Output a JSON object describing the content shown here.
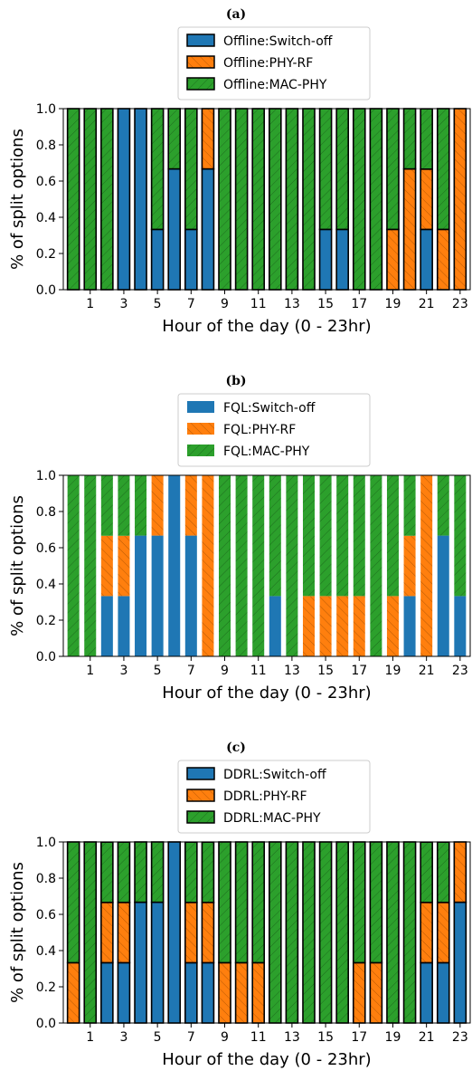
{
  "colors": {
    "switch_off": "#1f77b4",
    "phy_rf": "#ff7f0e",
    "mac_phy": "#2ca02c"
  },
  "chart_data": [
    {
      "type": "bar",
      "stacked": true,
      "title": "(a)",
      "xlabel": "Hour of the day (0 - 23hr)",
      "ylabel": "% of split options",
      "ylim": [
        0,
        1.0
      ],
      "yticks": [
        "0.0",
        "0.2",
        "0.4",
        "0.6",
        "0.8",
        "1.0"
      ],
      "xticks": [
        "1",
        "3",
        "5",
        "7",
        "9",
        "11",
        "13",
        "15",
        "17",
        "19",
        "21",
        "23"
      ],
      "categories": [
        0,
        1,
        2,
        3,
        4,
        5,
        6,
        7,
        8,
        9,
        10,
        11,
        12,
        13,
        14,
        15,
        16,
        17,
        18,
        19,
        20,
        21,
        22,
        23
      ],
      "bar_edges": true,
      "legend_position": "top-center",
      "series": [
        {
          "name": "Offline:Switch-off",
          "color_key": "switch_off",
          "values": [
            0,
            0,
            0,
            1,
            1,
            0.333,
            0.667,
            0.333,
            0.667,
            0,
            0,
            0,
            0,
            0,
            0,
            0.333,
            0.333,
            0,
            0,
            0,
            0,
            0.333,
            0,
            0
          ]
        },
        {
          "name": "Offline:PHY-RF",
          "color_key": "phy_rf",
          "values": [
            0,
            0,
            0,
            0,
            0,
            0,
            0,
            0,
            0.333,
            0,
            0,
            0,
            0,
            0,
            0,
            0,
            0,
            0,
            0,
            0.333,
            0.667,
            0.333,
            0.333,
            1
          ]
        },
        {
          "name": "Offline:MAC-PHY",
          "color_key": "mac_phy",
          "values": [
            1,
            1,
            1,
            0,
            0,
            0.667,
            0.333,
            0.667,
            0,
            1,
            1,
            1,
            1,
            1,
            1,
            0.667,
            0.667,
            1,
            1,
            0.667,
            0.333,
            0.333,
            0.667,
            0
          ]
        }
      ]
    },
    {
      "type": "bar",
      "stacked": true,
      "title": "(b)",
      "xlabel": "Hour of the day (0 - 23hr)",
      "ylabel": "% of split options",
      "ylim": [
        0,
        1.0
      ],
      "yticks": [
        "0.0",
        "0.2",
        "0.4",
        "0.6",
        "0.8",
        "1.0"
      ],
      "xticks": [
        "1",
        "3",
        "5",
        "7",
        "9",
        "11",
        "13",
        "15",
        "17",
        "19",
        "21",
        "23"
      ],
      "categories": [
        0,
        1,
        2,
        3,
        4,
        5,
        6,
        7,
        8,
        9,
        10,
        11,
        12,
        13,
        14,
        15,
        16,
        17,
        18,
        19,
        20,
        21,
        22,
        23
      ],
      "bar_edges": false,
      "legend_position": "top-center",
      "series": [
        {
          "name": "FQL:Switch-off",
          "color_key": "switch_off",
          "values": [
            0,
            0,
            0.333,
            0.333,
            0.667,
            0.667,
            1,
            0.667,
            0,
            0,
            0,
            0,
            0.333,
            0,
            0,
            0,
            0,
            0,
            0,
            0,
            0.333,
            0,
            0.667,
            0.333
          ]
        },
        {
          "name": "FQL:PHY-RF",
          "color_key": "phy_rf",
          "values": [
            0,
            0,
            0.333,
            0.333,
            0,
            0.333,
            0,
            0.333,
            1,
            0,
            0,
            0,
            0,
            0,
            0.333,
            0.333,
            0.333,
            0.333,
            0,
            0.333,
            0.333,
            1,
            0,
            0
          ]
        },
        {
          "name": "FQL:MAC-PHY",
          "color_key": "mac_phy",
          "values": [
            1,
            1,
            0.333,
            0.333,
            0.333,
            0,
            0,
            0,
            0,
            1,
            1,
            1,
            0.667,
            1,
            0.667,
            0.667,
            0.667,
            0.667,
            1,
            0.667,
            0.333,
            0,
            0.333,
            0.667
          ]
        }
      ]
    },
    {
      "type": "bar",
      "stacked": true,
      "title": "(c)",
      "xlabel": "Hour of the day (0 - 23hr)",
      "ylabel": "% of split options",
      "ylim": [
        0,
        1.0
      ],
      "yticks": [
        "0.0",
        "0.2",
        "0.4",
        "0.6",
        "0.8",
        "1.0"
      ],
      "xticks": [
        "1",
        "3",
        "5",
        "7",
        "9",
        "11",
        "13",
        "15",
        "17",
        "19",
        "21",
        "23"
      ],
      "categories": [
        0,
        1,
        2,
        3,
        4,
        5,
        6,
        7,
        8,
        9,
        10,
        11,
        12,
        13,
        14,
        15,
        16,
        17,
        18,
        19,
        20,
        21,
        22,
        23
      ],
      "bar_edges": true,
      "legend_position": "top-center",
      "series": [
        {
          "name": "DDRL:Switch-off",
          "color_key": "switch_off",
          "values": [
            0,
            0,
            0.333,
            0.333,
            0.667,
            0.667,
            1,
            0.333,
            0.333,
            0,
            0,
            0,
            0,
            0,
            0,
            0,
            0,
            0,
            0,
            0,
            0,
            0.333,
            0.333,
            0.667
          ]
        },
        {
          "name": "DDRL:PHY-RF",
          "color_key": "phy_rf",
          "values": [
            0.333,
            0,
            0.333,
            0.333,
            0,
            0,
            0,
            0.333,
            0.333,
            0.333,
            0.333,
            0.333,
            0,
            0,
            0,
            0,
            0,
            0.333,
            0.333,
            0,
            0,
            0.333,
            0.333,
            0.333
          ]
        },
        {
          "name": "DDRL:MAC-PHY",
          "color_key": "mac_phy",
          "values": [
            0.667,
            1,
            0.333,
            0.333,
            0.333,
            0.333,
            0,
            0.333,
            0.333,
            0.667,
            0.667,
            0.667,
            1,
            1,
            1,
            1,
            1,
            0.667,
            0.667,
            1,
            1,
            0.333,
            0.333,
            0
          ]
        }
      ]
    }
  ]
}
